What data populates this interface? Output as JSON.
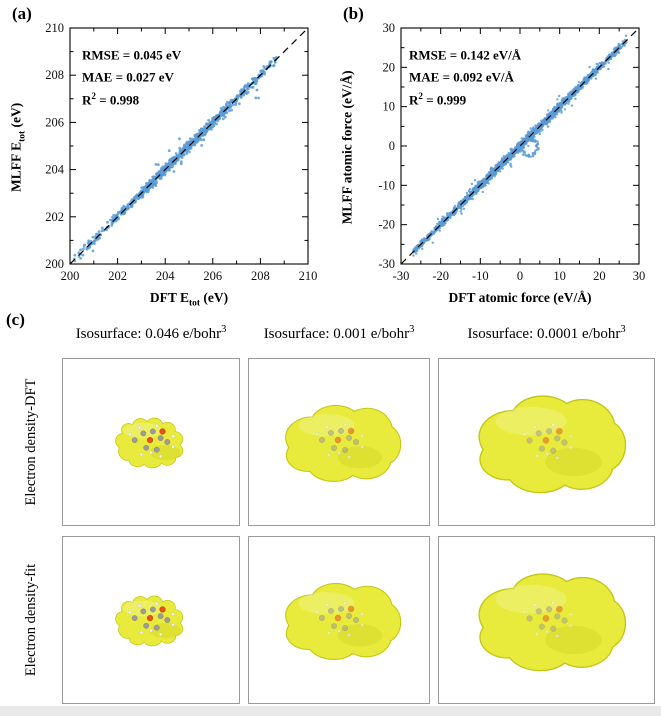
{
  "figure": {
    "background": "#ffffff",
    "panel_a_label": "(a)",
    "panel_b_label": "(b)",
    "panel_c_label": "(c)"
  },
  "chart_data": [
    {
      "id": "energy-parity",
      "type": "scatter",
      "xlabel": {
        "pre": "DFT E",
        "sub": "tot",
        "post": " (eV)"
      },
      "ylabel": {
        "pre": "MLFF E",
        "sub": "tot",
        "post": " (eV)"
      },
      "xlim": [
        200,
        210
      ],
      "ylim": [
        200,
        210
      ],
      "xticks": [
        200,
        202,
        204,
        206,
        208,
        210
      ],
      "yticks": [
        200,
        202,
        204,
        206,
        208,
        210
      ],
      "minor_step": 1,
      "grid": false,
      "identity_line": true,
      "point_color": "#5b9bd5",
      "point_radius": 1.4,
      "annotations": [
        {
          "pre": "RMSE = 0.045 eV"
        },
        {
          "pre": "MAE = 0.027 eV"
        },
        {
          "pre": "R",
          "sup": "2",
          "post": " = 0.998"
        }
      ],
      "scatter_spec": {
        "seed": 42,
        "n": 900,
        "x_mean": 204.7,
        "x_sigma": 1.7,
        "x_min": 200.15,
        "x_max": 208.7,
        "mix_uniform": 0.25,
        "noise_sigma": 0.1,
        "outlier_frac": 0.06,
        "outlier_sigma": 0.3
      }
    },
    {
      "id": "force-parity",
      "type": "scatter",
      "xlabel": {
        "pre": "DFT atomic force (eV/Å)"
      },
      "ylabel": {
        "pre": "MLFF atomic force (eV/Å)"
      },
      "xlim": [
        -30,
        30
      ],
      "ylim": [
        -30,
        30
      ],
      "xticks": [
        -30,
        -20,
        -10,
        0,
        10,
        20,
        30
      ],
      "yticks": [
        -30,
        -20,
        -10,
        0,
        10,
        20,
        30
      ],
      "minor_step": 5,
      "grid": false,
      "identity_line": true,
      "point_color": "#5b9bd5",
      "point_radius": 1.2,
      "annotations": [
        {
          "pre": "RMSE = 0.142 eV/Å"
        },
        {
          "pre": "MAE = 0.092 eV/Å"
        },
        {
          "pre": "R",
          "sup": "2",
          "post": " = 0.999"
        }
      ],
      "scatter_spec": {
        "seed": 7,
        "n": 2600,
        "x_mean": 0,
        "x_sigma": 10,
        "x_min": -27,
        "x_max": 27,
        "mix_uniform": 0.35,
        "noise_sigma": 0.5,
        "outlier_frac": 0.05,
        "outlier_sigma": 1.2,
        "loop": {
          "cx": 2.4,
          "cy": -0.3,
          "r": 2.1,
          "n": 80
        }
      }
    }
  ],
  "panel_c": {
    "col_headers": [
      {
        "pre": "Isosurface: 0.046 e/bohr",
        "sup": "3"
      },
      {
        "pre": "Isosurface: 0.001 e/bohr",
        "sup": "3"
      },
      {
        "pre": "Isosurface: 0.0001 e/bohr",
        "sup": "3"
      }
    ],
    "row_labels": [
      "Electron density-DFT",
      "Electron density-fit"
    ],
    "colors": {
      "surface_fill": "#e9eb3c",
      "surface_edge": "#c2c514",
      "surface_shade": "#b8bb12",
      "carbon": "#9b9b9b",
      "oxygen": "#e8501e",
      "hydrogen": "#f4f4f4",
      "box_border": "#9a9a9a"
    }
  }
}
